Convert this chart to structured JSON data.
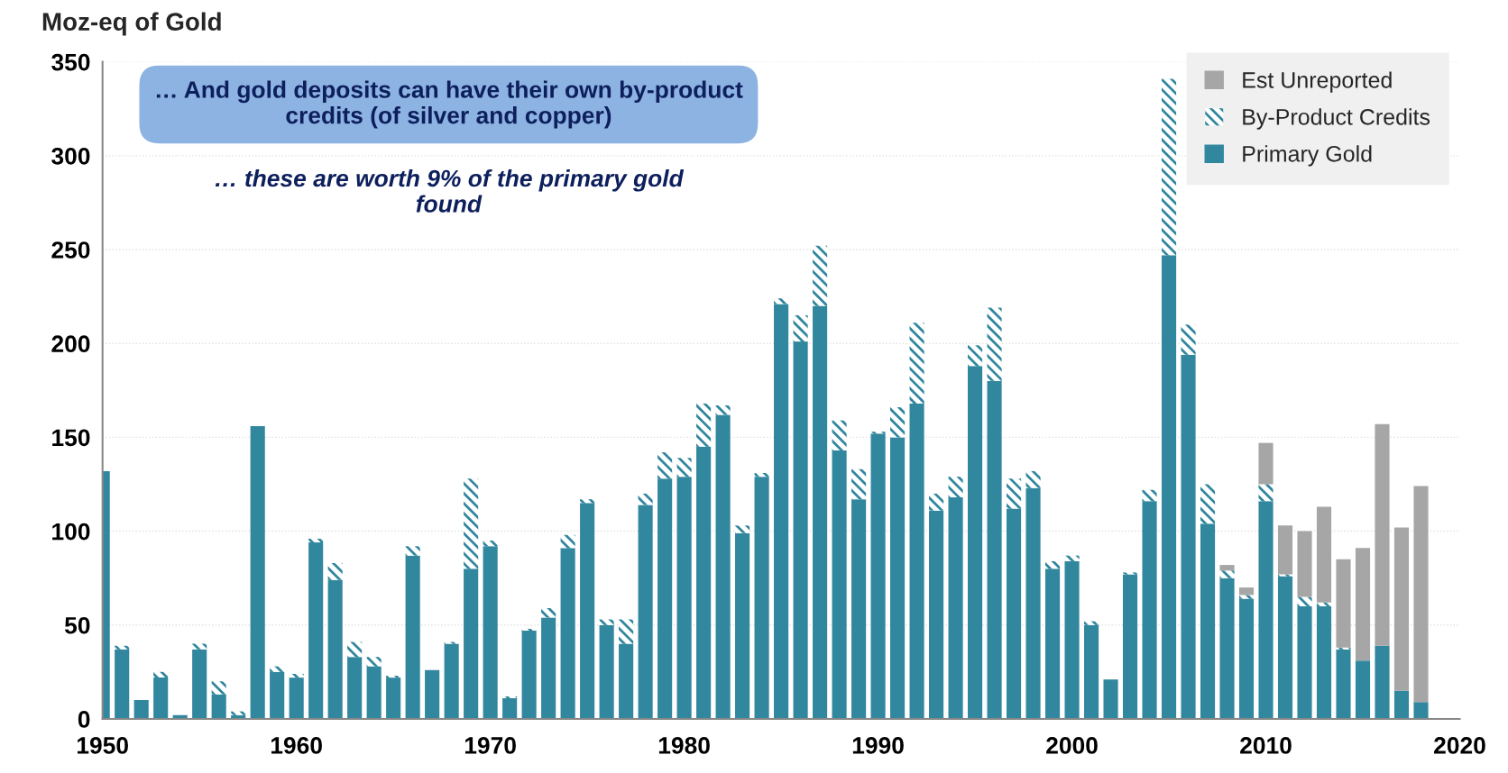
{
  "chart_data": {
    "type": "bar",
    "stacked": true,
    "ylabel": "Moz-eq of Gold",
    "x": [
      1950,
      1951,
      1952,
      1953,
      1954,
      1955,
      1956,
      1957,
      1958,
      1959,
      1960,
      1961,
      1962,
      1963,
      1964,
      1965,
      1966,
      1967,
      1968,
      1969,
      1970,
      1971,
      1972,
      1973,
      1974,
      1975,
      1976,
      1977,
      1978,
      1979,
      1980,
      1981,
      1982,
      1983,
      1984,
      1985,
      1986,
      1987,
      1988,
      1989,
      1990,
      1991,
      1992,
      1993,
      1994,
      1995,
      1996,
      1997,
      1998,
      1999,
      2000,
      2001,
      2002,
      2003,
      2004,
      2005,
      2006,
      2007,
      2008,
      2009,
      2010,
      2011,
      2012,
      2013,
      2014,
      2015,
      2016,
      2017,
      2018
    ],
    "series": [
      {
        "name": "Primary Gold",
        "color": "#31879e",
        "values": [
          132,
          37,
          10,
          22,
          2,
          37,
          13,
          2,
          156,
          25,
          22,
          94,
          74,
          33,
          28,
          22,
          87,
          26,
          40,
          80,
          92,
          11,
          47,
          54,
          91,
          115,
          50,
          40,
          114,
          128,
          129,
          145,
          162,
          99,
          129,
          221,
          201,
          220,
          143,
          117,
          152,
          150,
          168,
          111,
          118,
          188,
          180,
          112,
          123,
          80,
          84,
          50,
          21,
          77,
          116,
          247,
          194,
          104,
          75,
          64,
          116,
          76,
          60,
          60,
          37,
          31,
          39,
          15,
          9
        ]
      },
      {
        "name": "By-Product Credits",
        "color": "#31879e",
        "values": [
          null,
          2,
          null,
          3,
          null,
          3,
          7,
          2,
          null,
          3,
          2,
          2,
          9,
          8,
          5,
          1,
          5,
          null,
          1,
          48,
          3,
          1,
          1,
          5,
          7,
          2,
          3,
          13,
          6,
          14,
          10,
          23,
          5,
          4,
          2,
          3,
          14,
          32,
          16,
          16,
          1,
          16,
          43,
          9,
          11,
          11,
          39,
          16,
          9,
          4,
          3,
          2,
          null,
          1,
          6,
          94,
          16,
          21,
          4,
          2,
          9,
          1,
          5,
          2,
          1,
          null,
          null,
          null,
          null
        ]
      },
      {
        "name": "Est Unreported",
        "color": "#a6a6a6",
        "values": [
          null,
          null,
          null,
          null,
          null,
          null,
          null,
          null,
          null,
          null,
          null,
          null,
          null,
          null,
          null,
          null,
          null,
          null,
          null,
          null,
          null,
          null,
          null,
          null,
          null,
          null,
          null,
          null,
          null,
          null,
          null,
          null,
          null,
          null,
          null,
          null,
          null,
          null,
          null,
          null,
          null,
          null,
          null,
          null,
          null,
          null,
          null,
          null,
          null,
          null,
          null,
          null,
          null,
          null,
          null,
          null,
          null,
          null,
          3,
          4,
          22,
          26,
          35,
          51,
          47,
          60,
          118,
          87,
          115
        ]
      }
    ],
    "xlim": [
      1950,
      2020
    ],
    "xticks": [
      1950,
      1960,
      1970,
      1980,
      1990,
      2000,
      2010,
      2020
    ],
    "ylim": [
      0,
      350
    ],
    "yticks": [
      0,
      50,
      100,
      150,
      200,
      250,
      300,
      350
    ],
    "grid": "y",
    "legend": "top right",
    "annotations": [
      "… And gold deposits can have their own by-product credits (of silver and copper)",
      "… these are worth 9% of the primary gold found"
    ]
  }
}
